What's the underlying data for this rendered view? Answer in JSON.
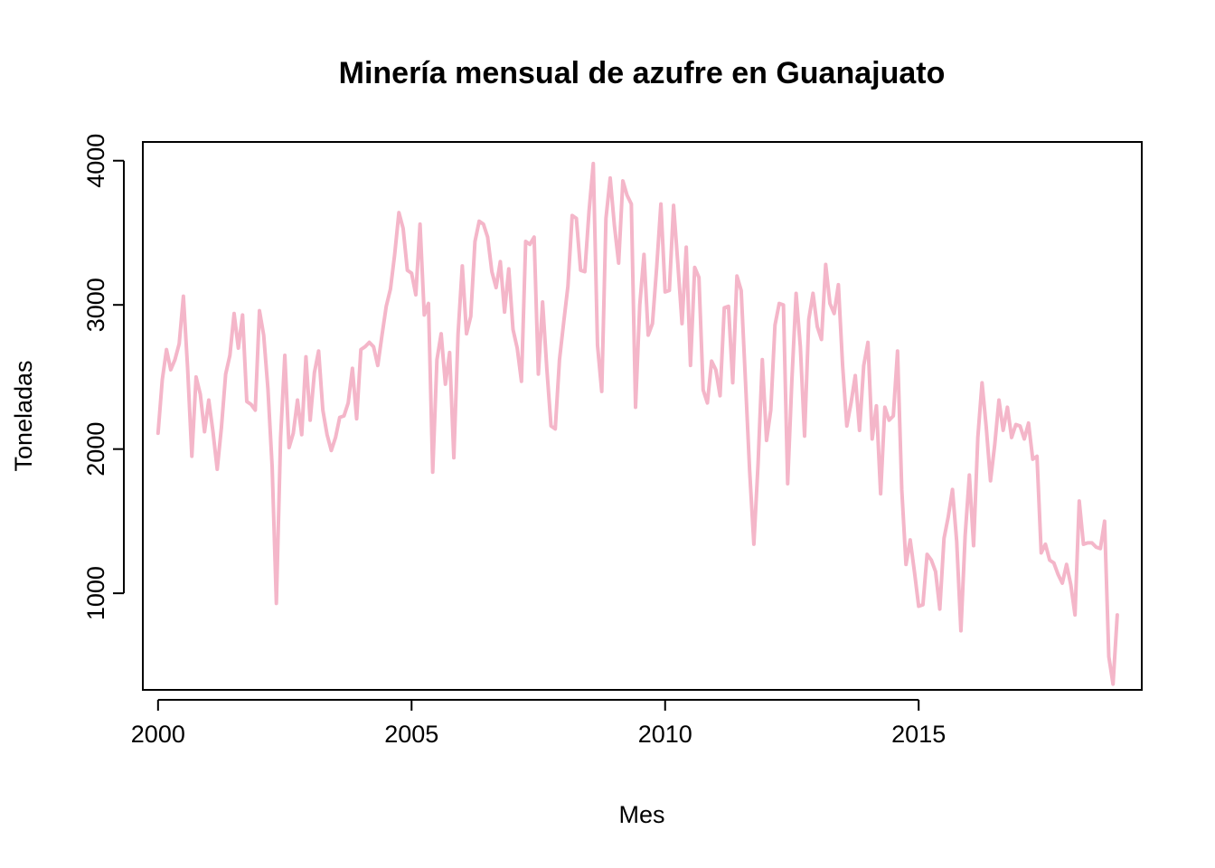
{
  "chart_data": {
    "type": "line",
    "title": "Minería mensual de azufre en Guanajuato",
    "xlabel": "Mes",
    "ylabel": "Toneladas",
    "xlim": [
      1999.7,
      2019.4
    ],
    "ylim": [
      330,
      4130
    ],
    "x_ticks": [
      2000,
      2005,
      2010,
      2015
    ],
    "y_ticks": [
      1000,
      2000,
      3000,
      4000
    ],
    "grid": false,
    "legend": "none",
    "color": "#f4b6c9",
    "series": [
      {
        "start_year": 2000,
        "frequency": 12,
        "values": [
          2110,
          2480,
          2690,
          2550,
          2620,
          2730,
          3060,
          2560,
          1950,
          2500,
          2380,
          2120,
          2340,
          2120,
          1860,
          2150,
          2520,
          2650,
          2940,
          2700,
          2930,
          2330,
          2310,
          2270,
          2960,
          2790,
          2420,
          1880,
          930,
          2080,
          2650,
          2010,
          2110,
          2340,
          2100,
          2640,
          2200,
          2530,
          2680,
          2270,
          2100,
          1990,
          2080,
          2220,
          2230,
          2320,
          2560,
          2210,
          2690,
          2710,
          2740,
          2710,
          2580,
          2790,
          2990,
          3110,
          3350,
          3640,
          3530,
          3240,
          3220,
          3070,
          3560,
          2930,
          3010,
          1840,
          2620,
          2800,
          2450,
          2670,
          1940,
          2800,
          3270,
          2800,
          2920,
          3440,
          3580,
          3560,
          3470,
          3230,
          3120,
          3300,
          2950,
          3250,
          2830,
          2700,
          2470,
          3440,
          3420,
          3470,
          2520,
          3020,
          2560,
          2160,
          2140,
          2620,
          2880,
          3130,
          3620,
          3600,
          3240,
          3230,
          3650,
          3980,
          2720,
          2400,
          3600,
          3880,
          3550,
          3290,
          3860,
          3760,
          3700,
          2290,
          3000,
          3350,
          2790,
          2870,
          3260,
          3700,
          3090,
          3100,
          3690,
          3290,
          2870,
          3400,
          2580,
          3260,
          3190,
          2410,
          2320,
          2610,
          2550,
          2370,
          2980,
          2990,
          2460,
          3200,
          3100,
          2480,
          1850,
          1340,
          1900,
          2620,
          2060,
          2270,
          2860,
          3010,
          3000,
          1760,
          2480,
          3080,
          2710,
          2090,
          2900,
          3080,
          2850,
          2760,
          3280,
          3010,
          2940,
          3140,
          2580,
          2160,
          2320,
          2510,
          2130,
          2580,
          2740,
          2070,
          2300,
          1690,
          2290,
          2200,
          2230,
          2680,
          1720,
          1200,
          1370,
          1150,
          910,
          920,
          1270,
          1230,
          1150,
          890,
          1380,
          1530,
          1720,
          1360,
          740,
          1400,
          1820,
          1330,
          2080,
          2460,
          2150,
          1780,
          2030,
          2340,
          2130,
          2290,
          2080,
          2170,
          2160,
          2070,
          2180,
          1930,
          1950,
          1280,
          1340,
          1230,
          1210,
          1130,
          1070,
          1200,
          1060,
          850,
          1640,
          1340,
          1350,
          1350,
          1320,
          1310,
          1500,
          560,
          370,
          850
        ]
      }
    ]
  }
}
